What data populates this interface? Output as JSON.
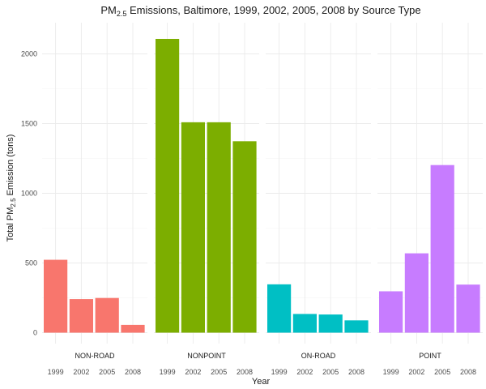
{
  "chart_data": {
    "type": "bar",
    "title": {
      "prefix": "PM",
      "subscript": "2.5",
      "suffix": " Emissions, Baltimore, 1999, 2002, 2005, 2008 by Source Type"
    },
    "xlabel": "Year",
    "ylabel": {
      "prefix": "Total PM",
      "subscript": "2.5",
      "suffix": " Emission (tons)"
    },
    "ylim": [
      0,
      2200
    ],
    "yticks": [
      0,
      500,
      1000,
      1500,
      2000
    ],
    "grid": true,
    "categories": [
      "1999",
      "2002",
      "2005",
      "2008"
    ],
    "panels": [
      {
        "name": "NON-ROAD",
        "color": "#F8766D",
        "values": [
          522.94,
          240.85,
          248.93,
          55.82
        ]
      },
      {
        "name": "NONPOINT",
        "color": "#7CAE00",
        "values": [
          2107.63,
          1509.5,
          1509.5,
          1373.21
        ]
      },
      {
        "name": "ON-ROAD",
        "color": "#00BFC4",
        "values": [
          346.82,
          134.31,
          130.43,
          88.28
        ]
      },
      {
        "name": "POINT",
        "color": "#C77CFF",
        "values": [
          296.8,
          569.26,
          1202.49,
          344.98
        ]
      }
    ]
  }
}
